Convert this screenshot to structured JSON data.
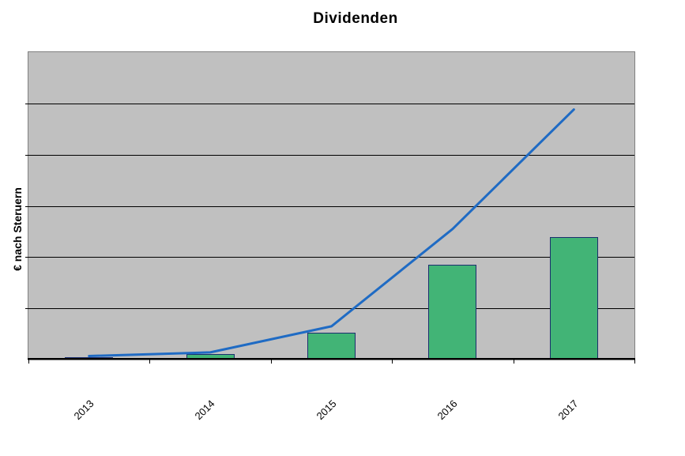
{
  "title": "Dividenden",
  "y_axis_title": "€ nach Steruern",
  "colors": {
    "background": "#ffffff",
    "plot_bg": "#c0c0c0",
    "plot_border": "#808080",
    "gridline": "#000000",
    "axis": "#000000",
    "text": "#000000",
    "bar_fill": "#42b476",
    "bar_border": "#1b2e6e",
    "line": "#1f6bc4"
  },
  "chart_data": {
    "type": "bar",
    "combo": "bar+line",
    "title": "Dividenden",
    "xlabel": "",
    "ylabel": "€ nach Steruern",
    "categories": [
      "2013",
      "2014",
      "2015",
      "2016",
      "2017"
    ],
    "series": [
      {
        "name": "bars",
        "type": "bar",
        "values": [
          0.05,
          0.11,
          0.52,
          1.85,
          2.39
        ]
      },
      {
        "name": "line",
        "type": "line",
        "values": [
          0.07,
          0.14,
          0.65,
          2.55,
          4.88
        ]
      }
    ],
    "ylim": [
      0,
      6
    ],
    "y_gridline_step": 1,
    "y_tick_labels_visible": false,
    "x_label_rotation_deg": 45,
    "grid": "horizontal",
    "legend": "none",
    "note": "y-axis shows no numeric tick labels; values expressed in gridline units (1 unit = one horizontal band)"
  }
}
